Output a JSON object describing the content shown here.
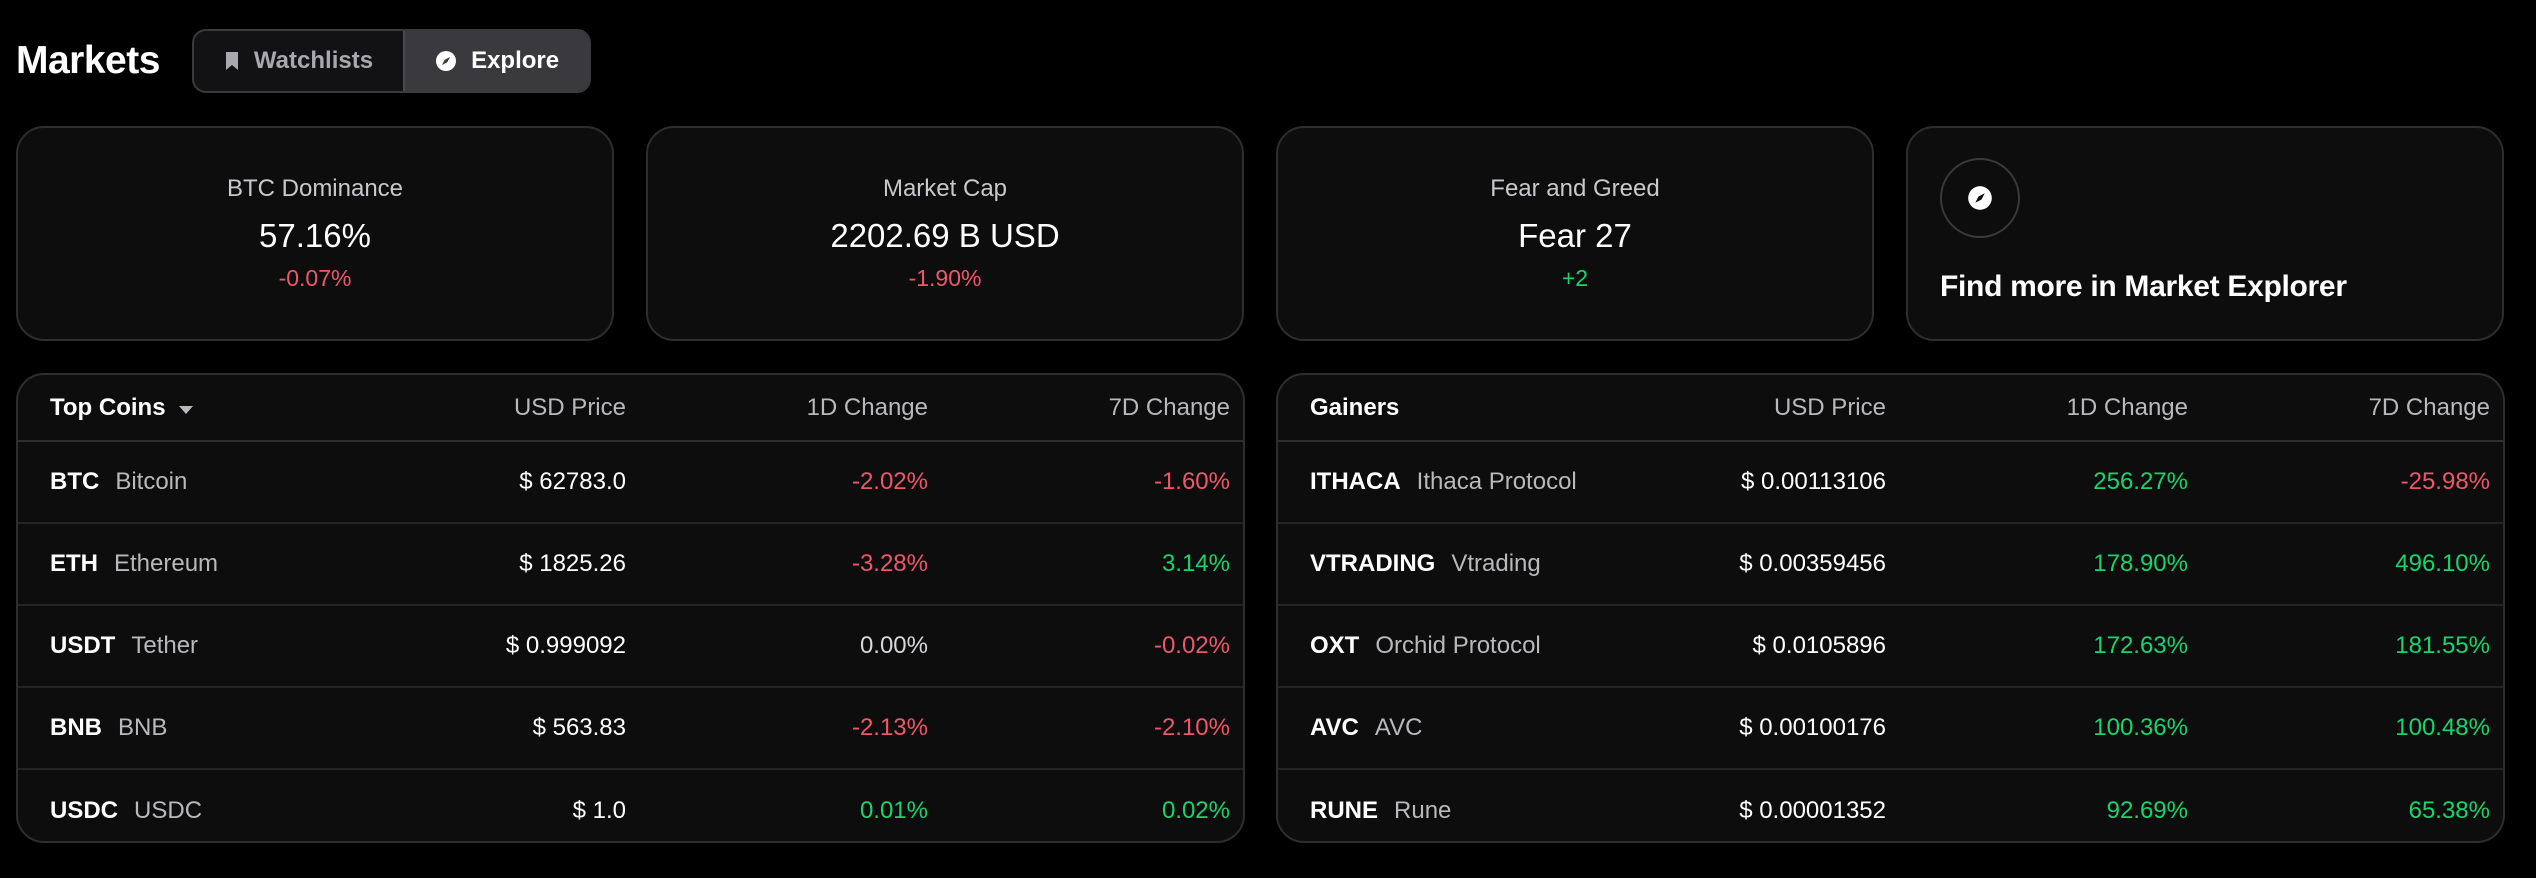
{
  "header": {
    "title": "Markets",
    "tabs": [
      {
        "label": "Watchlists",
        "icon": "bookmark-icon",
        "active": false
      },
      {
        "label": "Explore",
        "icon": "compass-icon",
        "active": true
      }
    ]
  },
  "stats": [
    {
      "label": "BTC Dominance",
      "value": "57.16%",
      "change": "-0.07%"
    },
    {
      "label": "Market Cap",
      "value": "2202.69 B USD",
      "change": "-1.90%"
    },
    {
      "label": "Fear and Greed",
      "value": "Fear 27",
      "change": "+2"
    }
  ],
  "explorer": {
    "text": "Find more in Market Explorer",
    "icon": "compass-icon"
  },
  "top_coins": {
    "headers": {
      "name": "Top Coins",
      "price": "USD Price",
      "d1": "1D Change",
      "d7": "7D Change"
    },
    "rows": [
      {
        "symbol": "BTC",
        "name": "Bitcoin",
        "price": "$ 62783.0",
        "d1": "-2.02%",
        "d7": "-1.60%"
      },
      {
        "symbol": "ETH",
        "name": "Ethereum",
        "price": "$ 1825.26",
        "d1": "-3.28%",
        "d7": "3.14%"
      },
      {
        "symbol": "USDT",
        "name": "Tether",
        "price": "$ 0.999092",
        "d1": "0.00%",
        "d7": "-0.02%"
      },
      {
        "symbol": "BNB",
        "name": "BNB",
        "price": "$ 563.83",
        "d1": "-2.13%",
        "d7": "-2.10%"
      },
      {
        "symbol": "USDC",
        "name": "USDC",
        "price": "$ 1.0",
        "d1": "0.01%",
        "d7": "0.02%"
      }
    ]
  },
  "gainers": {
    "headers": {
      "name": "Gainers",
      "price": "USD Price",
      "d1": "1D Change",
      "d7": "7D Change"
    },
    "rows": [
      {
        "symbol": "ITHACA",
        "name": "Ithaca Protocol",
        "price": "$ 0.00113106",
        "d1": "256.27%",
        "d7": "-25.98%"
      },
      {
        "symbol": "VTRADING",
        "name": "Vtrading",
        "price": "$ 0.00359456",
        "d1": "178.90%",
        "d7": "496.10%"
      },
      {
        "symbol": "OXT",
        "name": "Orchid Protocol",
        "price": "$ 0.0105896",
        "d1": "172.63%",
        "d7": "181.55%"
      },
      {
        "symbol": "AVC",
        "name": "AVC",
        "price": "$ 0.00100176",
        "d1": "100.36%",
        "d7": "100.48%"
      },
      {
        "symbol": "RUNE",
        "name": "Rune",
        "price": "$ 0.00001352",
        "d1": "92.69%",
        "d7": "65.38%"
      }
    ]
  },
  "colors": {
    "negative": "#f0566a",
    "positive": "#18d46c",
    "neutral": "#d8d8dc"
  }
}
